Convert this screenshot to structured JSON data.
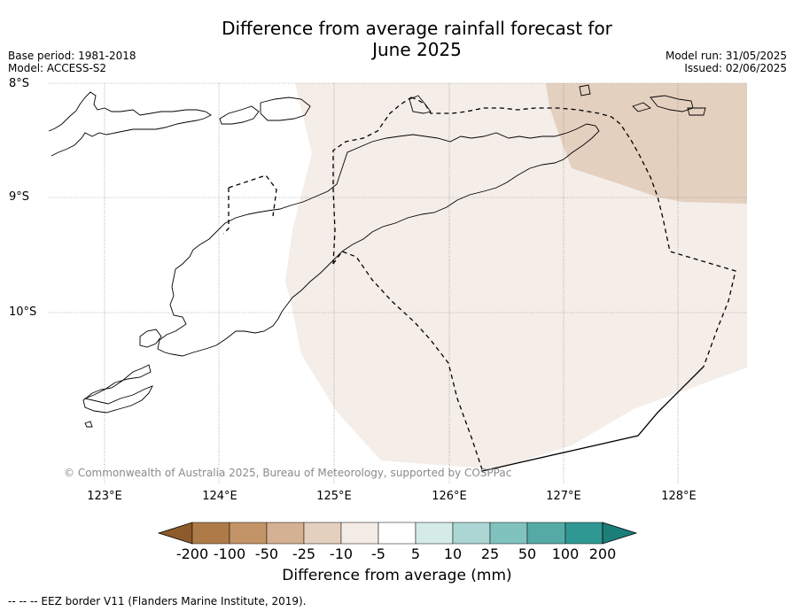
{
  "title_line1": "Difference from average rainfall forecast for",
  "title_line2": "June 2025",
  "base_period": "Base period: 1981-2018",
  "model": "Model: ACCESS-S2",
  "model_run": "Model run: 31/05/2025",
  "issued": "Issued: 02/06/2025",
  "lat_labels": [
    "8°S",
    "9°S",
    "10°S"
  ],
  "lon_labels": [
    "123°E",
    "124°E",
    "125°E",
    "126°E",
    "127°E",
    "128°E"
  ],
  "copyright": "© Commonwealth of Australia 2025, Bureau of Meteorology, supported by COSPPac",
  "colorbar": {
    "ticks": [
      "-200",
      "-100",
      "-50",
      "-25",
      "-10",
      "-5",
      "5",
      "10",
      "25",
      "50",
      "100",
      "200"
    ],
    "colors": [
      "#8c5a2b",
      "#ae7b48",
      "#c39467",
      "#d5b193",
      "#e4d0bf",
      "#f4ece6",
      "#ffffff",
      "#d4ebe8",
      "#acd6d3",
      "#80c2be",
      "#56aaa6",
      "#2f9893",
      "#1c7e79"
    ],
    "title": "Difference from average (mm)"
  },
  "footnote": "--  --  -- EEZ border V11 (Flanders Marine Institute, 2019).",
  "map_fills": {
    "light_dry": "#f4ede8",
    "dry": "#e4d0bf"
  }
}
